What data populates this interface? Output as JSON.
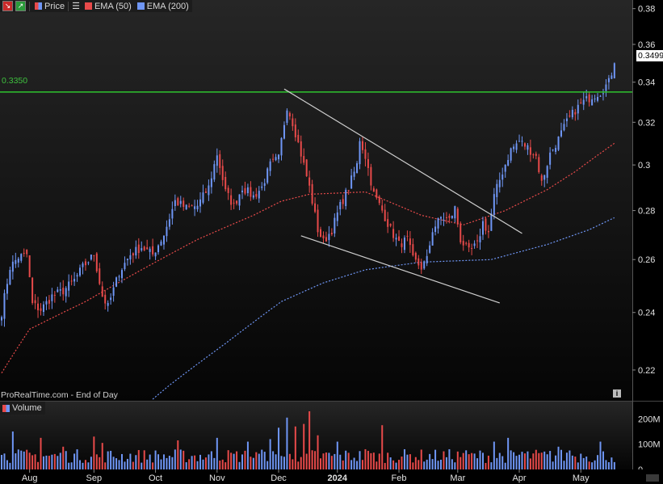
{
  "legend": {
    "price_label": "Price",
    "ema50_label": "EMA (50)",
    "ema200_label": "EMA (200)",
    "ema50_color": "#e84a4a",
    "ema200_color": "#6f96f5",
    "price_color": "#e84a4a"
  },
  "volume_label": "Volume",
  "watermark": "ProRealTime.com - End of Day",
  "current_price_tag": "0.3499",
  "resistance_label": "0.3350",
  "colors": {
    "up": "#6f96f5",
    "down": "#e84a4a",
    "resistance": "#2fc42f",
    "trendline": "#cfcfcf"
  },
  "chart_data": {
    "type": "candlestick",
    "price_axis": {
      "ticks": [
        "0.22",
        "0.24",
        "0.26",
        "0.28",
        "0.3",
        "0.32",
        "0.34",
        "0.36",
        "0.38"
      ],
      "range": [
        0.21,
        0.385
      ],
      "scale": "log"
    },
    "volume_axis": {
      "ticks": [
        "0",
        "100M",
        "200M"
      ],
      "range": [
        0,
        230
      ]
    },
    "x_axis": {
      "labels": [
        "Aug",
        "Sep",
        "Oct",
        "Nov",
        "Dec",
        "2024",
        "Feb",
        "Mar",
        "Apr",
        "May"
      ],
      "label_day_index": [
        10,
        33,
        55,
        77,
        99,
        120,
        142,
        163,
        185,
        207
      ]
    },
    "resistance_level": 0.335,
    "last_price": 0.3499,
    "anchors": [
      [
        0,
        0.24
      ],
      [
        3,
        0.257
      ],
      [
        6,
        0.261
      ],
      [
        9,
        0.262
      ],
      [
        11,
        0.243
      ],
      [
        14,
        0.241
      ],
      [
        18,
        0.246
      ],
      [
        22,
        0.248
      ],
      [
        26,
        0.252
      ],
      [
        29,
        0.257
      ],
      [
        33,
        0.262
      ],
      [
        36,
        0.246
      ],
      [
        38,
        0.242
      ],
      [
        42,
        0.255
      ],
      [
        46,
        0.262
      ],
      [
        50,
        0.265
      ],
      [
        54,
        0.262
      ],
      [
        58,
        0.27
      ],
      [
        62,
        0.284
      ],
      [
        66,
        0.281
      ],
      [
        70,
        0.282
      ],
      [
        74,
        0.29
      ],
      [
        77,
        0.305
      ],
      [
        80,
        0.288
      ],
      [
        83,
        0.282
      ],
      [
        86,
        0.29
      ],
      [
        90,
        0.286
      ],
      [
        93,
        0.29
      ],
      [
        96,
        0.3
      ],
      [
        99,
        0.303
      ],
      [
        102,
        0.328
      ],
      [
        104,
        0.32
      ],
      [
        107,
        0.305
      ],
      [
        110,
        0.29
      ],
      [
        113,
        0.272
      ],
      [
        115,
        0.267
      ],
      [
        118,
        0.272
      ],
      [
        121,
        0.282
      ],
      [
        124,
        0.29
      ],
      [
        127,
        0.3
      ],
      [
        128,
        0.312
      ],
      [
        130,
        0.304
      ],
      [
        133,
        0.287
      ],
      [
        136,
        0.28
      ],
      [
        139,
        0.272
      ],
      [
        142,
        0.266
      ],
      [
        145,
        0.268
      ],
      [
        147,
        0.26
      ],
      [
        150,
        0.257
      ],
      [
        152,
        0.26
      ],
      [
        154,
        0.272
      ],
      [
        157,
        0.277
      ],
      [
        160,
        0.276
      ],
      [
        162,
        0.281
      ],
      [
        164,
        0.268
      ],
      [
        167,
        0.263
      ],
      [
        170,
        0.266
      ],
      [
        172,
        0.275
      ],
      [
        174,
        0.271
      ],
      [
        176,
        0.286
      ],
      [
        179,
        0.297
      ],
      [
        182,
        0.307
      ],
      [
        185,
        0.311
      ],
      [
        188,
        0.308
      ],
      [
        191,
        0.304
      ],
      [
        193,
        0.292
      ],
      [
        196,
        0.305
      ],
      [
        199,
        0.312
      ],
      [
        202,
        0.32
      ],
      [
        205,
        0.326
      ],
      [
        208,
        0.33
      ],
      [
        211,
        0.333
      ],
      [
        214,
        0.335
      ],
      [
        217,
        0.34
      ],
      [
        219,
        0.3499
      ]
    ],
    "volume_spikes": [
      [
        4,
        150
      ],
      [
        14,
        125
      ],
      [
        22,
        90
      ],
      [
        33,
        130
      ],
      [
        36,
        105
      ],
      [
        63,
        115
      ],
      [
        77,
        125
      ],
      [
        88,
        110
      ],
      [
        94,
        70
      ],
      [
        96,
        120
      ],
      [
        99,
        165
      ],
      [
        102,
        205
      ],
      [
        105,
        170
      ],
      [
        108,
        180
      ],
      [
        110,
        255
      ],
      [
        113,
        135
      ],
      [
        120,
        110
      ],
      [
        130,
        80
      ],
      [
        136,
        175
      ],
      [
        165,
        65
      ],
      [
        176,
        110
      ],
      [
        181,
        125
      ],
      [
        186,
        70
      ],
      [
        195,
        60
      ],
      [
        199,
        90
      ],
      [
        203,
        75
      ],
      [
        208,
        45
      ],
      [
        214,
        110
      ]
    ],
    "ema50_anchors": [
      [
        0,
        0.219
      ],
      [
        10,
        0.234
      ],
      [
        30,
        0.244
      ],
      [
        50,
        0.256
      ],
      [
        70,
        0.268
      ],
      [
        90,
        0.278
      ],
      [
        100,
        0.284
      ],
      [
        110,
        0.287
      ],
      [
        130,
        0.288
      ],
      [
        150,
        0.278
      ],
      [
        165,
        0.274
      ],
      [
        180,
        0.28
      ],
      [
        195,
        0.289
      ],
      [
        205,
        0.297
      ],
      [
        219,
        0.31
      ]
    ],
    "ema200_anchors": [
      [
        40,
        0.2
      ],
      [
        60,
        0.215
      ],
      [
        80,
        0.229
      ],
      [
        100,
        0.244
      ],
      [
        115,
        0.251
      ],
      [
        130,
        0.256
      ],
      [
        150,
        0.259
      ],
      [
        175,
        0.26
      ],
      [
        195,
        0.266
      ],
      [
        210,
        0.272
      ],
      [
        219,
        0.277
      ]
    ],
    "trendlines": [
      {
        "from": [
          101,
          0.3365
        ],
        "to": [
          186,
          0.2705
        ]
      },
      {
        "from": [
          107,
          0.2695
        ],
        "to": [
          178,
          0.2435
        ]
      }
    ]
  }
}
